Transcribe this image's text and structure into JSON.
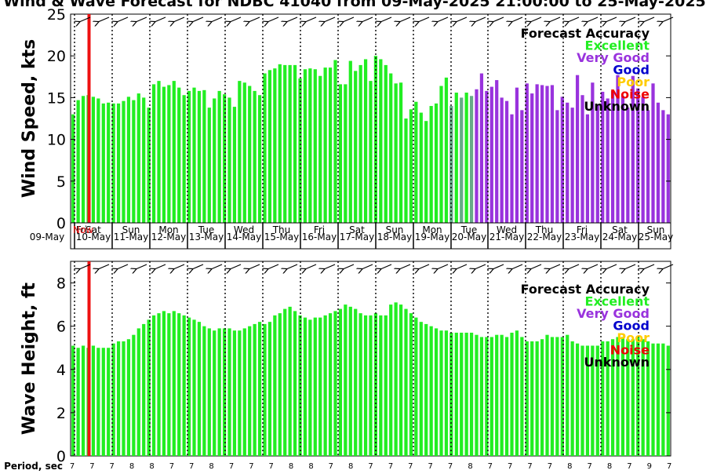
{
  "title": "Wind & Wave Forecast for NDBC 41040 from 09-May-2025 21:00:00 to 25-May-2025",
  "colors": {
    "excellent": "#22ee22",
    "very_good": "#9933dd",
    "good": "#0000cc",
    "poor": "#ffcc00",
    "noise": "#ee0000",
    "unknown": "#000000",
    "now_line": "#ee1111"
  },
  "days": [
    {
      "dow": "Fri",
      "date": "09-May"
    },
    {
      "dow": "Sat",
      "date": "10-May"
    },
    {
      "dow": "Sun",
      "date": "11-May"
    },
    {
      "dow": "Mon",
      "date": "12-May"
    },
    {
      "dow": "Tue",
      "date": "13-May"
    },
    {
      "dow": "Wed",
      "date": "14-May"
    },
    {
      "dow": "Thu",
      "date": "15-May"
    },
    {
      "dow": "Fri",
      "date": "16-May"
    },
    {
      "dow": "Sat",
      "date": "17-May"
    },
    {
      "dow": "Sun",
      "date": "18-May"
    },
    {
      "dow": "Mon",
      "date": "19-May"
    },
    {
      "dow": "Tue",
      "date": "20-May"
    },
    {
      "dow": "Wed",
      "date": "21-May"
    },
    {
      "dow": "Thu",
      "date": "22-May"
    },
    {
      "dow": "Fri",
      "date": "23-May"
    },
    {
      "dow": "Sat",
      "date": "24-May"
    },
    {
      "dow": "Sun",
      "date": "25-May"
    }
  ],
  "now_label": "Now",
  "period": {
    "label": "Period, sec",
    "values": [
      "7",
      "7",
      "7",
      "8",
      "8",
      "7",
      "7",
      "8",
      "7",
      "7",
      "7",
      "8",
      "8",
      "7",
      "8",
      "7",
      "7",
      "7",
      "7",
      "7",
      "8",
      "7",
      "7",
      "7",
      "7",
      "8",
      "7",
      "8",
      "7",
      "9",
      "7"
    ]
  },
  "legend": {
    "title": "Forecast Accuracy",
    "items": [
      "Excellent",
      "Very Good",
      "Good",
      "Poor",
      "Noise",
      "Unknown"
    ]
  },
  "chart_data": [
    {
      "type": "bar",
      "ylabel": "Wind Speed, kts",
      "ylim": [
        0,
        25
      ],
      "yticks": [
        0,
        5,
        10,
        15,
        20,
        25
      ],
      "x_start": "09-May 21:00",
      "x_step_hours": 3,
      "now_index": 3,
      "values": [
        13.0,
        14.7,
        15.2,
        15.3,
        15.1,
        14.9,
        14.3,
        14.4,
        14.3,
        14.3,
        14.6,
        15.1,
        14.7,
        15.5,
        15.0,
        13.8,
        16.6,
        17.0,
        16.3,
        16.5,
        17.0,
        16.2,
        15.3,
        15.8,
        16.2,
        15.8,
        15.9,
        13.8,
        14.9,
        15.8,
        15.4,
        15.0,
        13.9,
        17.0,
        16.8,
        16.4,
        15.8,
        15.3,
        17.9,
        18.3,
        18.5,
        19.0,
        18.9,
        18.9,
        18.9,
        17.3,
        18.4,
        18.5,
        18.4,
        17.6,
        18.6,
        18.6,
        19.5,
        16.6,
        16.6,
        19.4,
        18.2,
        18.9,
        19.6,
        17.0,
        20.0,
        19.6,
        18.9,
        17.9,
        16.7,
        16.8,
        12.5,
        13.6,
        14.5,
        13.2,
        12.2,
        14.0,
        14.3,
        16.4,
        17.4,
        14.0,
        15.6,
        15.0,
        15.6,
        15.2,
        16.0,
        17.9,
        15.8,
        16.3,
        17.1,
        15.0,
        14.6,
        13.0,
        16.2,
        13.5,
        16.7,
        15.5,
        16.6,
        16.5,
        16.4,
        16.5,
        13.5,
        15.1,
        14.4,
        13.8,
        17.7,
        15.3,
        13.0,
        16.8,
        14.1,
        15.7,
        14.9,
        15.8,
        17.7,
        15.2,
        13.8,
        17.6,
        16.1,
        15.1,
        13.5,
        16.7,
        14.4,
        13.5,
        13.0
      ],
      "categories_by_index": {
        "default": "excellent",
        "ranges": [
          [
            0,
            74,
            "excellent"
          ],
          [
            75,
            79,
            "mixed"
          ],
          [
            80,
            118,
            "very_good"
          ]
        ]
      },
      "direction_arrows": "from northeast, one per 3-hour step"
    },
    {
      "type": "bar",
      "ylabel": "Wave Height, ft",
      "ylim": [
        0,
        9
      ],
      "yticks": [
        0,
        2,
        4,
        6,
        8
      ],
      "x_start": "09-May 21:00",
      "x_step_hours": 3,
      "now_index": 3,
      "values": [
        5.1,
        5.0,
        5.1,
        5.0,
        5.1,
        5.0,
        5.0,
        5.0,
        5.2,
        5.3,
        5.3,
        5.4,
        5.6,
        5.9,
        6.1,
        6.3,
        6.5,
        6.6,
        6.7,
        6.6,
        6.7,
        6.6,
        6.5,
        6.4,
        6.3,
        6.2,
        6.0,
        5.9,
        5.8,
        5.9,
        5.9,
        5.9,
        5.8,
        5.8,
        5.9,
        6.0,
        6.1,
        6.2,
        6.1,
        6.2,
        6.5,
        6.6,
        6.8,
        6.9,
        6.7,
        6.5,
        6.4,
        6.3,
        6.4,
        6.4,
        6.5,
        6.6,
        6.7,
        6.8,
        7.0,
        6.9,
        6.8,
        6.6,
        6.5,
        6.5,
        6.6,
        6.5,
        6.5,
        7.0,
        7.1,
        7.0,
        6.8,
        6.6,
        6.4,
        6.2,
        6.1,
        6.0,
        5.9,
        5.8,
        5.8,
        5.7,
        5.7,
        5.7,
        5.7,
        5.7,
        5.6,
        5.5,
        5.5,
        5.5,
        5.6,
        5.6,
        5.5,
        5.7,
        5.8,
        5.5,
        5.3,
        5.3,
        5.3,
        5.4,
        5.6,
        5.5,
        5.5,
        5.5,
        5.6,
        5.3,
        5.2,
        5.1,
        5.1,
        5.1,
        5.1,
        5.3,
        5.3,
        5.4,
        5.5,
        5.5,
        5.4,
        5.4,
        5.5,
        5.4,
        5.3,
        5.2,
        5.2,
        5.2,
        5.1
      ],
      "categories_by_index": {
        "default": "excellent"
      }
    }
  ]
}
